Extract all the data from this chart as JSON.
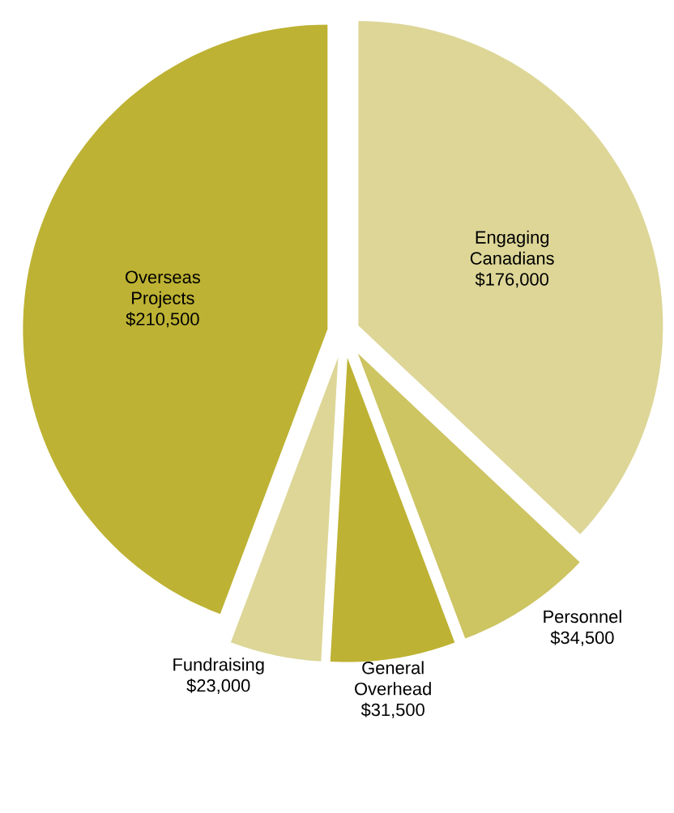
{
  "chart_data": {
    "type": "pie",
    "categories": [
      "Engaging Canadians",
      "Personnel",
      "General Overhead",
      "Fundraising",
      "Overseas Projects"
    ],
    "values": [
      176000,
      34500,
      31500,
      23000,
      210500
    ],
    "value_labels": [
      "$176,000",
      "$34,500",
      "$31,500",
      "$23,000",
      "$210,500"
    ],
    "colors": [
      "#ddd697",
      "#cdc462",
      "#bdb233",
      "#ddd697",
      "#bdb233"
    ]
  }
}
